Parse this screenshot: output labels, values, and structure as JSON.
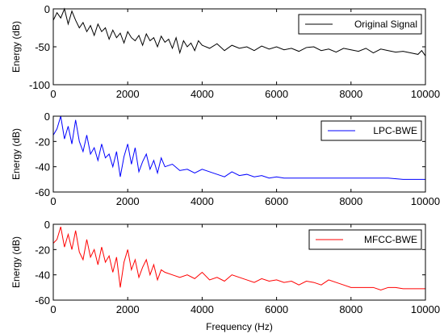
{
  "chart_data": [
    {
      "type": "line",
      "xlabel": "",
      "ylabel": "Energy (dB)",
      "xlim": [
        0,
        10000
      ],
      "ylim": [
        -100,
        0
      ],
      "xticks": [
        0,
        2000,
        4000,
        6000,
        8000,
        10000
      ],
      "yticks": [
        -100,
        -50,
        0
      ],
      "legend": "top-right",
      "series": [
        {
          "name": "Original Signal",
          "color": "#000000",
          "x": [
            0,
            100,
            200,
            300,
            400,
            500,
            600,
            700,
            800,
            900,
            1000,
            1100,
            1200,
            1300,
            1400,
            1500,
            1600,
            1700,
            1800,
            1900,
            2000,
            2100,
            2200,
            2300,
            2400,
            2500,
            2600,
            2700,
            2800,
            2900,
            3000,
            3100,
            3200,
            3300,
            3400,
            3500,
            3600,
            3700,
            3800,
            3900,
            4000,
            4200,
            4400,
            4600,
            4800,
            5000,
            5200,
            5400,
            5600,
            5800,
            6000,
            6200,
            6400,
            6600,
            6800,
            7000,
            7200,
            7400,
            7600,
            7800,
            8000,
            8200,
            8400,
            8600,
            8800,
            9000,
            9200,
            9400,
            9600,
            9800,
            9900,
            10000
          ],
          "y": [
            -15,
            -5,
            -12,
            0,
            -20,
            -3,
            -15,
            -25,
            -18,
            -30,
            -22,
            -35,
            -20,
            -30,
            -25,
            -40,
            -28,
            -38,
            -32,
            -45,
            -30,
            -38,
            -42,
            -35,
            -48,
            -33,
            -42,
            -38,
            -50,
            -36,
            -44,
            -40,
            -52,
            -38,
            -58,
            -42,
            -50,
            -45,
            -55,
            -42,
            -48,
            -52,
            -46,
            -55,
            -48,
            -52,
            -50,
            -55,
            -49,
            -53,
            -50,
            -54,
            -52,
            -56,
            -51,
            -50,
            -55,
            -53,
            -57,
            -52,
            -54,
            -56,
            -52,
            -58,
            -53,
            -55,
            -57,
            -56,
            -58,
            -60,
            -55,
            -62
          ]
        }
      ]
    },
    {
      "type": "line",
      "xlabel": "",
      "ylabel": "Energy (dB)",
      "xlim": [
        0,
        10000
      ],
      "ylim": [
        -60,
        0
      ],
      "xticks": [
        0,
        2000,
        4000,
        6000,
        8000,
        10000
      ],
      "yticks": [
        -60,
        -40,
        -20,
        0
      ],
      "legend": "top-right",
      "series": [
        {
          "name": "LPC-BWE",
          "color": "#0000ff",
          "x": [
            0,
            100,
            200,
            300,
            400,
            500,
            600,
            700,
            800,
            900,
            1000,
            1100,
            1200,
            1300,
            1400,
            1500,
            1600,
            1700,
            1800,
            1900,
            2000,
            2100,
            2200,
            2300,
            2400,
            2500,
            2600,
            2700,
            2800,
            2900,
            3000,
            3200,
            3400,
            3600,
            3800,
            4000,
            4200,
            4400,
            4600,
            4800,
            5000,
            5200,
            5400,
            5600,
            5800,
            6000,
            6200,
            6400,
            6600,
            7000,
            7500,
            8000,
            8500,
            9000,
            9400,
            9600,
            9800,
            10000
          ],
          "y": [
            -15,
            -10,
            0,
            -18,
            -8,
            -22,
            -3,
            -20,
            -28,
            -15,
            -30,
            -25,
            -35,
            -22,
            -33,
            -30,
            -40,
            -28,
            -48,
            -32,
            -22,
            -38,
            -25,
            -44,
            -36,
            -30,
            -42,
            -35,
            -45,
            -33,
            -40,
            -38,
            -43,
            -42,
            -45,
            -42,
            -44,
            -46,
            -48,
            -44,
            -47,
            -46,
            -48,
            -47,
            -49,
            -48,
            -49,
            -49,
            -49,
            -49,
            -49,
            -49,
            -49,
            -49,
            -50,
            -50,
            -50,
            -50
          ]
        }
      ]
    },
    {
      "type": "line",
      "xlabel": "Frequency (Hz)",
      "ylabel": "Energy (dB)",
      "xlim": [
        0,
        10000
      ],
      "ylim": [
        -60,
        0
      ],
      "xticks": [
        0,
        2000,
        4000,
        6000,
        8000,
        10000
      ],
      "yticks": [
        -60,
        -40,
        -20,
        0
      ],
      "legend": "top-right",
      "series": [
        {
          "name": "MFCC-BWE",
          "color": "#ff0000",
          "x": [
            0,
            100,
            200,
            300,
            400,
            500,
            600,
            700,
            800,
            900,
            1000,
            1100,
            1200,
            1300,
            1400,
            1500,
            1600,
            1700,
            1800,
            1900,
            2000,
            2100,
            2200,
            2300,
            2400,
            2500,
            2600,
            2700,
            2800,
            2900,
            3000,
            3200,
            3400,
            3600,
            3800,
            4000,
            4200,
            4400,
            4600,
            4800,
            5000,
            5200,
            5400,
            5600,
            5800,
            6000,
            6200,
            6400,
            6600,
            6800,
            7000,
            7200,
            7400,
            7600,
            7800,
            8000,
            8200,
            8400,
            8600,
            8800,
            9000,
            9200,
            9400,
            9600,
            9800,
            10000
          ],
          "y": [
            -15,
            -12,
            -2,
            -18,
            -8,
            -20,
            -5,
            -22,
            -28,
            -12,
            -26,
            -20,
            -32,
            -18,
            -30,
            -25,
            -38,
            -26,
            -50,
            -30,
            -20,
            -36,
            -28,
            -42,
            -34,
            -28,
            -40,
            -32,
            -44,
            -36,
            -38,
            -40,
            -42,
            -40,
            -43,
            -38,
            -44,
            -42,
            -45,
            -40,
            -42,
            -44,
            -46,
            -43,
            -45,
            -44,
            -46,
            -45,
            -48,
            -45,
            -46,
            -48,
            -44,
            -46,
            -48,
            -50,
            -50,
            -50,
            -50,
            -52,
            -50,
            -50,
            -51,
            -51,
            -51,
            -51
          ]
        }
      ]
    }
  ]
}
